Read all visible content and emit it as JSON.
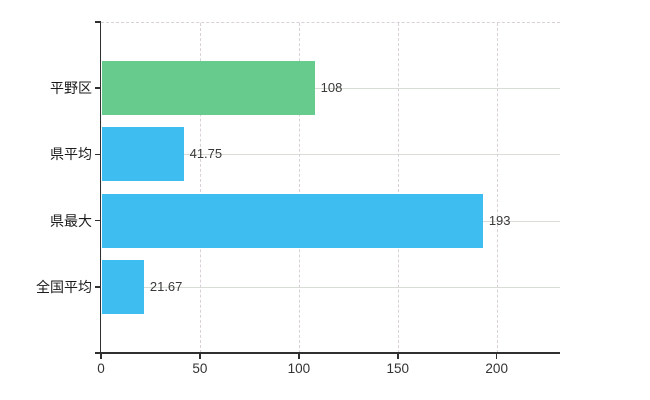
{
  "chart_data": {
    "type": "bar",
    "orientation": "horizontal",
    "title": "",
    "xlabel": "",
    "ylabel": "",
    "categories": [
      "平野区",
      "県平均",
      "県最大",
      "全国平均"
    ],
    "values": [
      108,
      41.75,
      193,
      21.67
    ],
    "value_labels": [
      "108",
      "41.75",
      "193",
      "21.67"
    ],
    "bar_colors": [
      "#67cb8d",
      "#3ebdf0",
      "#3ebdf0",
      "#3ebdf0"
    ],
    "x_ticks": [
      0,
      50,
      100,
      150,
      200
    ],
    "x_tick_labels": [
      "0",
      "50",
      "100",
      "150",
      "200"
    ],
    "xlim": [
      0,
      232
    ],
    "grid": true,
    "legend": false
  },
  "colors": {
    "background": "#ffffff",
    "axis": "#303030",
    "grid_vertical_dashed": "#d8d2d8",
    "grid_horizontal": "#d8ded6",
    "bar_green": "#67cb8d",
    "bar_blue": "#3ebdf0",
    "category_text": "#1c1c1c",
    "value_text": "#3a3a3a",
    "tick_text": "#333333"
  }
}
